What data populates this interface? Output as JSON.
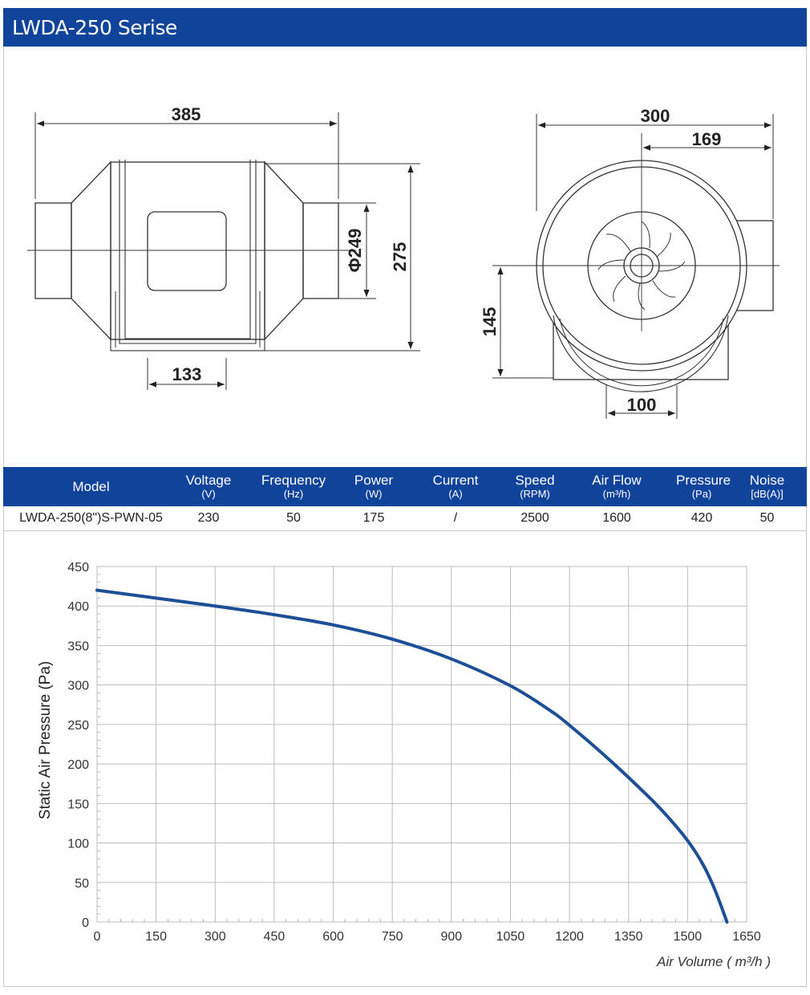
{
  "page_title": "LWDA-250 Serise",
  "drawing": {
    "side_view": {
      "overall_length": "385",
      "body_height": "275",
      "duct_diameter": "Φ249",
      "base_width": "133"
    },
    "front_view": {
      "overall_width": "300",
      "outlet_offset": "169",
      "center_height": "145",
      "base_width": "100"
    }
  },
  "spec_table": {
    "headers": [
      {
        "label": "Model",
        "unit": ""
      },
      {
        "label": "Voltage",
        "unit": "(V)"
      },
      {
        "label": "Frequency",
        "unit": "(Hz)"
      },
      {
        "label": "Power",
        "unit": "(W)"
      },
      {
        "label": "Current",
        "unit": "(A)"
      },
      {
        "label": "Speed",
        "unit": "(RPM)"
      },
      {
        "label": "Air Flow",
        "unit": "(m³/h)"
      },
      {
        "label": "Pressure",
        "unit": "(Pa)"
      },
      {
        "label": "Noise",
        "unit": "[dB(A)]"
      }
    ],
    "row": [
      "LWDA-250(8\")S-PWN-05",
      "230",
      "50",
      "175",
      "/",
      "2500",
      "1600",
      "420",
      "50"
    ]
  },
  "chart_data": {
    "type": "line",
    "title": "",
    "xlabel": "Air Volume ( m³/h )",
    "ylabel": "Static Air Pressure  (Pa)",
    "xlim": [
      0,
      1650
    ],
    "ylim": [
      0,
      450
    ],
    "x_ticks": [
      "0",
      "150",
      "300",
      "450",
      "600",
      "750",
      "900",
      "1050",
      "1200",
      "1350",
      "1500",
      "1650"
    ],
    "y_ticks": [
      "0",
      "50",
      "100",
      "150",
      "200",
      "250",
      "300",
      "350",
      "400",
      "450"
    ],
    "grid": true,
    "series": [
      {
        "color": "#1c4f96",
        "x": [
          0,
          150,
          300,
          450,
          600,
          750,
          900,
          1050,
          1150,
          1200,
          1300,
          1400,
          1450,
          1500,
          1540,
          1570,
          1600
        ],
        "y": [
          420,
          410,
          400,
          389,
          376,
          358,
          333,
          299,
          268,
          249,
          206,
          159,
          133,
          103,
          72,
          40,
          0
        ]
      }
    ]
  }
}
